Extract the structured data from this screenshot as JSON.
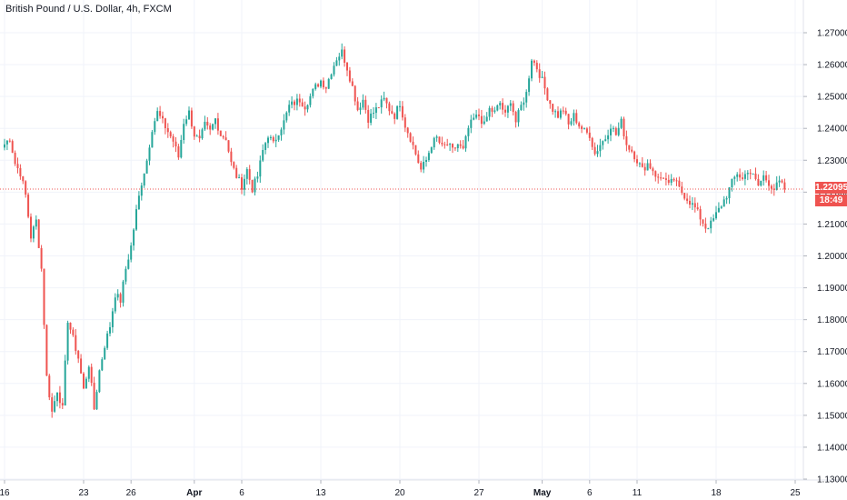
{
  "header": {
    "title": "British Pound / U.S. Dollar, 4h, FXCM"
  },
  "colors": {
    "up": "#26a69a",
    "down": "#ef5350",
    "grid": "#f0f3fa",
    "last_price_line": "#ef5350",
    "axis_text": "#131722"
  },
  "chart_data": {
    "type": "candlestick",
    "title": "British Pound / U.S. Dollar, 4h, FXCM",
    "ylim": [
      1.13,
      1.275
    ],
    "y_ticks": [
      "1.27000",
      "1.26000",
      "1.25000",
      "1.24000",
      "1.23000",
      "1.22000",
      "1.21000",
      "1.20000",
      "1.19000",
      "1.18000",
      "1.17000",
      "1.16000",
      "1.15000",
      "1.14000",
      "1.13000"
    ],
    "x_ticks": [
      {
        "label": "16",
        "bar": 0,
        "bold": false
      },
      {
        "label": "23",
        "bar": 30,
        "bold": false
      },
      {
        "label": "26",
        "bar": 48,
        "bold": false
      },
      {
        "label": "Apr",
        "bar": 72,
        "bold": true
      },
      {
        "label": "6",
        "bar": 90,
        "bold": false
      },
      {
        "label": "13",
        "bar": 120,
        "bold": false
      },
      {
        "label": "20",
        "bar": 150,
        "bold": false
      },
      {
        "label": "27",
        "bar": 180,
        "bold": false
      },
      {
        "label": "May",
        "bar": 204,
        "bold": true
      },
      {
        "label": "6",
        "bar": 222,
        "bold": false
      },
      {
        "label": "11",
        "bar": 240,
        "bold": false
      },
      {
        "label": "18",
        "bar": 270,
        "bold": false
      },
      {
        "label": "25",
        "bar": 300,
        "bold": false
      }
    ],
    "last_price": "1.22095",
    "countdown": "18:49",
    "series": [
      {
        "name": "",
        "anchors": [
          [
            0,
            1.235
          ],
          [
            2,
            1.237
          ],
          [
            4,
            1.229
          ],
          [
            6,
            1.226
          ],
          [
            8,
            1.219
          ],
          [
            10,
            1.206
          ],
          [
            12,
            1.211
          ],
          [
            14,
            1.196
          ],
          [
            16,
            1.162
          ],
          [
            18,
            1.151
          ],
          [
            20,
            1.158
          ],
          [
            22,
            1.152
          ],
          [
            24,
            1.18
          ],
          [
            26,
            1.174
          ],
          [
            28,
            1.168
          ],
          [
            30,
            1.158
          ],
          [
            32,
            1.166
          ],
          [
            34,
            1.152
          ],
          [
            36,
            1.164
          ],
          [
            38,
            1.172
          ],
          [
            40,
            1.178
          ],
          [
            42,
            1.188
          ],
          [
            44,
            1.186
          ],
          [
            46,
            1.196
          ],
          [
            48,
            1.203
          ],
          [
            50,
            1.214
          ],
          [
            52,
            1.223
          ],
          [
            54,
            1.23
          ],
          [
            56,
            1.24
          ],
          [
            58,
            1.245
          ],
          [
            60,
            1.242
          ],
          [
            62,
            1.239
          ],
          [
            64,
            1.236
          ],
          [
            66,
            1.231
          ],
          [
            68,
            1.242
          ],
          [
            70,
            1.245
          ],
          [
            72,
            1.238
          ],
          [
            74,
            1.236
          ],
          [
            76,
            1.241
          ],
          [
            78,
            1.239
          ],
          [
            80,
            1.243
          ],
          [
            82,
            1.238
          ],
          [
            84,
            1.237
          ],
          [
            86,
            1.229
          ],
          [
            88,
            1.225
          ],
          [
            90,
            1.222
          ],
          [
            92,
            1.227
          ],
          [
            94,
            1.221
          ],
          [
            96,
            1.225
          ],
          [
            98,
            1.233
          ],
          [
            100,
            1.238
          ],
          [
            102,
            1.235
          ],
          [
            104,
            1.239
          ],
          [
            106,
            1.242
          ],
          [
            108,
            1.247
          ],
          [
            110,
            1.248
          ],
          [
            112,
            1.249
          ],
          [
            114,
            1.247
          ],
          [
            116,
            1.25
          ],
          [
            118,
            1.253
          ],
          [
            120,
            1.255
          ],
          [
            122,
            1.253
          ],
          [
            124,
            1.258
          ],
          [
            126,
            1.262
          ],
          [
            128,
            1.264
          ],
          [
            130,
            1.259
          ],
          [
            132,
            1.253
          ],
          [
            134,
            1.246
          ],
          [
            136,
            1.249
          ],
          [
            138,
            1.243
          ],
          [
            140,
            1.245
          ],
          [
            142,
            1.247
          ],
          [
            144,
            1.249
          ],
          [
            146,
            1.246
          ],
          [
            148,
            1.244
          ],
          [
            150,
            1.248
          ],
          [
            152,
            1.241
          ],
          [
            154,
            1.237
          ],
          [
            156,
            1.232
          ],
          [
            158,
            1.227
          ],
          [
            160,
            1.23
          ],
          [
            162,
            1.235
          ],
          [
            164,
            1.237
          ],
          [
            166,
            1.234
          ],
          [
            168,
            1.235
          ],
          [
            170,
            1.233
          ],
          [
            172,
            1.235
          ],
          [
            174,
            1.233
          ],
          [
            176,
            1.24
          ],
          [
            178,
            1.243
          ],
          [
            180,
            1.244
          ],
          [
            182,
            1.241
          ],
          [
            184,
            1.246
          ],
          [
            186,
            1.245
          ],
          [
            188,
            1.248
          ],
          [
            190,
            1.244
          ],
          [
            192,
            1.249
          ],
          [
            194,
            1.242
          ],
          [
            196,
            1.247
          ],
          [
            198,
            1.251
          ],
          [
            200,
            1.262
          ],
          [
            202,
            1.259
          ],
          [
            204,
            1.255
          ],
          [
            206,
            1.25
          ],
          [
            208,
            1.246
          ],
          [
            210,
            1.244
          ],
          [
            212,
            1.246
          ],
          [
            214,
            1.241
          ],
          [
            216,
            1.244
          ],
          [
            218,
            1.241
          ],
          [
            220,
            1.239
          ],
          [
            222,
            1.238
          ],
          [
            224,
            1.232
          ],
          [
            226,
            1.235
          ],
          [
            228,
            1.237
          ],
          [
            230,
            1.241
          ],
          [
            232,
            1.238
          ],
          [
            234,
            1.242
          ],
          [
            236,
            1.235
          ],
          [
            238,
            1.233
          ],
          [
            240,
            1.23
          ],
          [
            242,
            1.227
          ],
          [
            244,
            1.229
          ],
          [
            246,
            1.227
          ],
          [
            248,
            1.224
          ],
          [
            250,
            1.225
          ],
          [
            252,
            1.222
          ],
          [
            254,
            1.224
          ],
          [
            256,
            1.221
          ],
          [
            258,
            1.219
          ],
          [
            260,
            1.217
          ],
          [
            262,
            1.215
          ],
          [
            264,
            1.212
          ],
          [
            266,
            1.209
          ],
          [
            268,
            1.21
          ],
          [
            270,
            1.213
          ],
          [
            272,
            1.216
          ],
          [
            274,
            1.219
          ],
          [
            276,
            1.223
          ],
          [
            278,
            1.226
          ],
          [
            280,
            1.224
          ],
          [
            282,
            1.227
          ],
          [
            284,
            1.225
          ],
          [
            286,
            1.222
          ],
          [
            288,
            1.225
          ],
          [
            290,
            1.223
          ],
          [
            292,
            1.221
          ],
          [
            294,
            1.223
          ],
          [
            296,
            1.221
          ]
        ]
      }
    ]
  }
}
